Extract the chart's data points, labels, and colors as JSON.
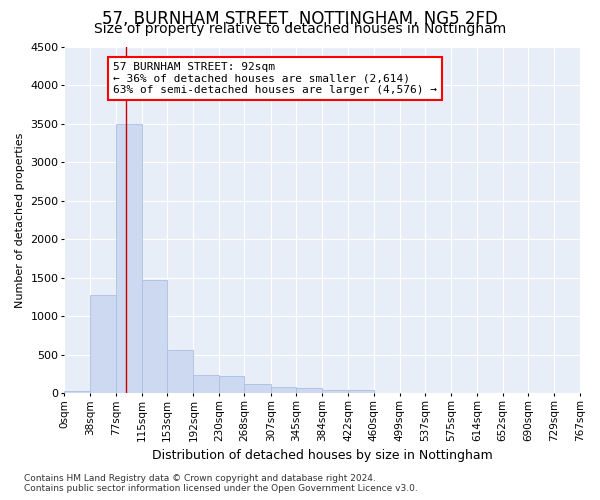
{
  "title1": "57, BURNHAM STREET, NOTTINGHAM, NG5 2FD",
  "title2": "Size of property relative to detached houses in Nottingham",
  "xlabel": "Distribution of detached houses by size in Nottingham",
  "ylabel": "Number of detached properties",
  "footer1": "Contains HM Land Registry data © Crown copyright and database right 2024.",
  "footer2": "Contains public sector information licensed under the Open Government Licence v3.0.",
  "annotation_line1": "57 BURNHAM STREET: 92sqm",
  "annotation_line2": "← 36% of detached houses are smaller (2,614)",
  "annotation_line3": "63% of semi-detached houses are larger (4,576) →",
  "bar_color": "#ccd9f0",
  "bar_edge_color": "#aabfdf",
  "red_line_color": "#cc0000",
  "red_line_x": 92,
  "ylim": [
    0,
    4500
  ],
  "xlim": [
    0,
    767
  ],
  "bins": [
    0,
    38,
    77,
    115,
    153,
    192,
    230,
    268,
    307,
    345,
    384,
    422,
    460,
    499,
    537,
    575,
    614,
    652,
    690,
    729,
    767
  ],
  "counts": [
    30,
    1280,
    3500,
    1470,
    570,
    240,
    230,
    120,
    80,
    65,
    50,
    40,
    10,
    0,
    0,
    0,
    10,
    0,
    0,
    0,
    0
  ],
  "tick_labels": [
    "0sqm",
    "38sqm",
    "77sqm",
    "115sqm",
    "153sqm",
    "192sqm",
    "230sqm",
    "268sqm",
    "307sqm",
    "345sqm",
    "384sqm",
    "422sqm",
    "460sqm",
    "499sqm",
    "537sqm",
    "575sqm",
    "614sqm",
    "652sqm",
    "690sqm",
    "729sqm",
    "767sqm"
  ],
  "plot_bg_color": "#e8eef8",
  "grid_color": "#ffffff",
  "fig_bg_color": "#ffffff",
  "title1_fontsize": 12,
  "title2_fontsize": 10,
  "annotation_fontsize": 8,
  "xlabel_fontsize": 9,
  "ylabel_fontsize": 8,
  "ytick_fontsize": 8,
  "xtick_fontsize": 7.5,
  "footer_fontsize": 6.5
}
